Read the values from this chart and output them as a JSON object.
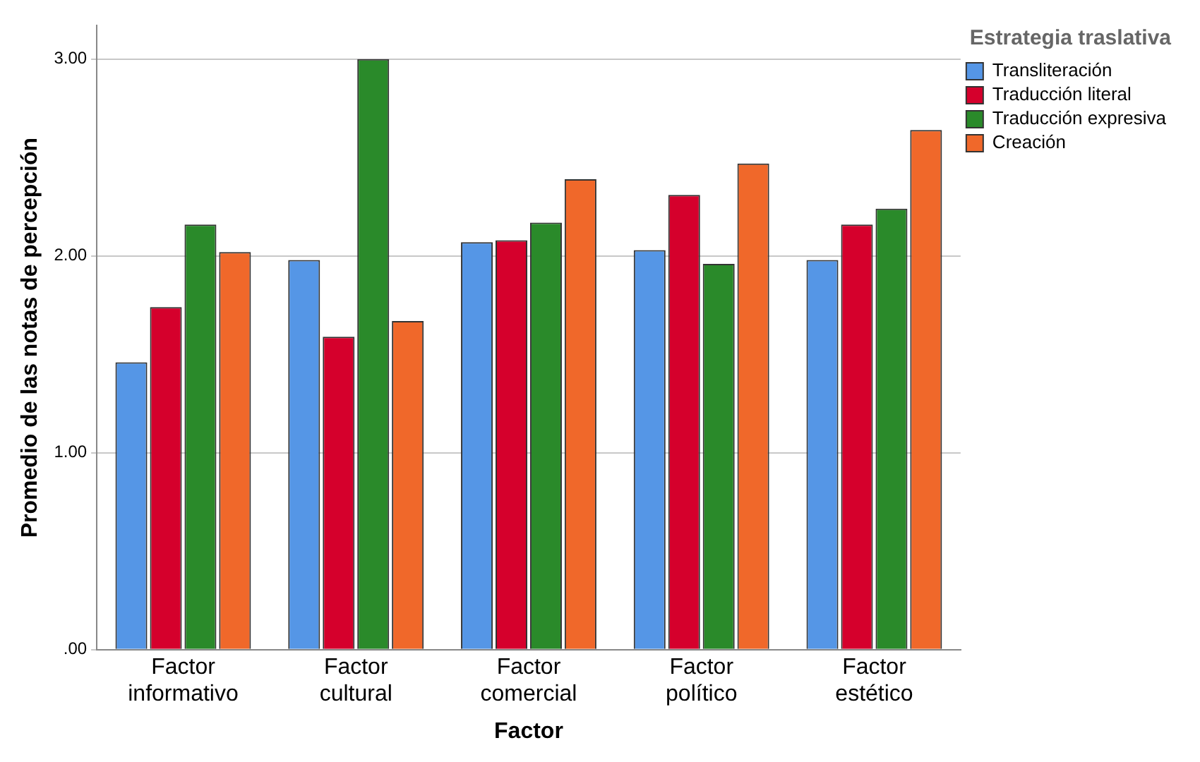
{
  "chart_data": {
    "type": "bar",
    "xlabel": "Factor",
    "ylabel": "Promedio de las notas de percepción",
    "legend_title": "Estrategia traslativa",
    "categories": [
      "Factor informativo",
      "Factor cultural",
      "Factor comercial",
      "Factor político",
      "Factor estético"
    ],
    "series": [
      {
        "name": "Transliteración",
        "color": "#5596e6",
        "values": [
          1.46,
          1.98,
          2.07,
          2.03,
          1.98
        ]
      },
      {
        "name": "Traducción literal",
        "color": "#d5002c",
        "values": [
          1.74,
          1.59,
          2.08,
          2.31,
          2.16
        ]
      },
      {
        "name": "Traducción expresiva",
        "color": "#2a8a2a",
        "values": [
          2.16,
          3.0,
          2.17,
          1.96,
          2.24
        ]
      },
      {
        "name": "Creación",
        "color": "#f0682a",
        "values": [
          2.02,
          1.67,
          2.39,
          2.47,
          2.64
        ]
      }
    ],
    "ylim": [
      0,
      3.17
    ],
    "yticks": [
      {
        "value": 0,
        "label": ".00"
      },
      {
        "value": 1,
        "label": "1.00"
      },
      {
        "value": 2,
        "label": "2.00"
      },
      {
        "value": 3,
        "label": "3.00"
      }
    ],
    "grid": "y",
    "legend": "top right"
  }
}
